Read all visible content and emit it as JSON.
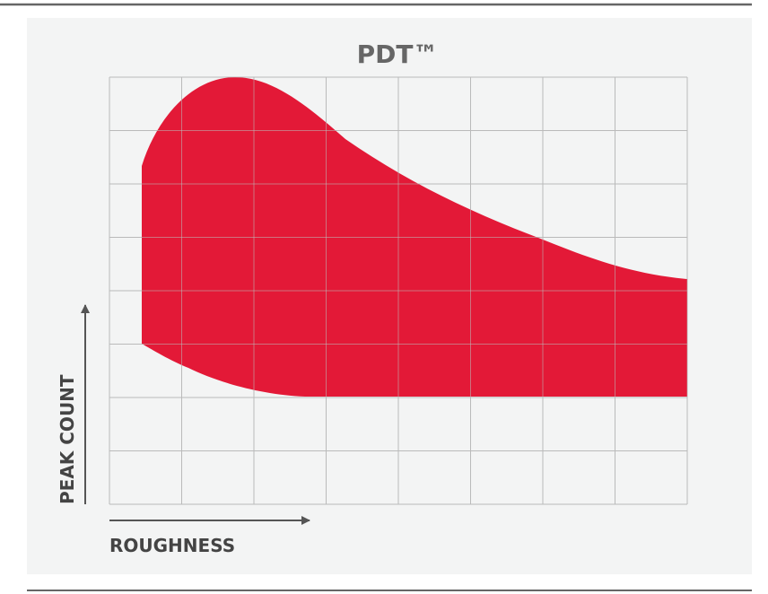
{
  "title": "PDT™",
  "x_label": "ROUGHNESS",
  "y_label": "PEAK COUNT"
}
